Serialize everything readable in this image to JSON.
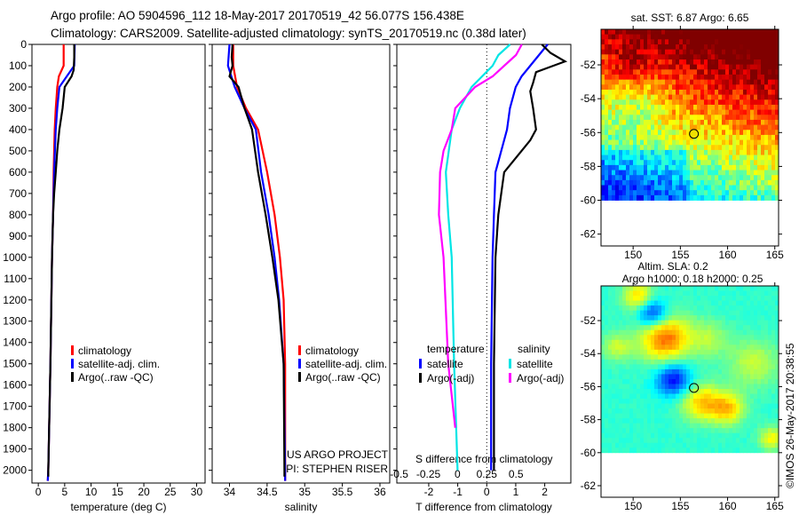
{
  "header": {
    "line1": "Argo profile: AO 5904596_112 18-May-2017 20170519_42 56.077S 156.438E",
    "line2": "Climatology: CARS2009. Satellite-adjusted climatology: synTS_20170519.nc (0.38d later)"
  },
  "colors": {
    "climatology": "#ff0000",
    "satellite": "#0000ff",
    "argo": "#000000",
    "sal_sat": "#00e5e5",
    "sal_argo": "#ff00ff"
  },
  "chart_data": [
    {
      "type": "line",
      "name": "temperature",
      "xlabel": "temperature (deg C)",
      "ylabel": "",
      "xlim": [
        -1.2,
        31.6
      ],
      "ylim": [
        2060,
        0
      ],
      "xticks": [
        0,
        5,
        10,
        15,
        20,
        25,
        30
      ],
      "yticks": [
        0,
        100,
        200,
        300,
        400,
        500,
        600,
        700,
        800,
        900,
        1000,
        1100,
        1200,
        1300,
        1400,
        1500,
        1600,
        1700,
        1800,
        1900,
        2000
      ],
      "legend": [
        "climatology",
        "satellite-adj. clim.",
        "Argo(..raw -QC)"
      ],
      "series": [
        {
          "name": "climatology",
          "depth": [
            0,
            100,
            150,
            200,
            300,
            400,
            600,
            800,
            1000,
            1500,
            2000,
            2050
          ],
          "values": [
            4.8,
            4.8,
            3.9,
            3.6,
            3.3,
            3.1,
            2.9,
            2.8,
            2.6,
            2.3,
            1.9,
            1.8
          ]
        },
        {
          "name": "satellite-adj. clim.",
          "depth": [
            0,
            100,
            150,
            200,
            300,
            400,
            600,
            800,
            1000,
            1500,
            2000,
            2050
          ],
          "values": [
            6.9,
            6.8,
            5.4,
            4.0,
            3.6,
            3.3,
            3.0,
            2.8,
            2.6,
            2.3,
            1.9,
            1.8
          ]
        },
        {
          "name": "Argo(..raw -QC)",
          "depth": [
            0,
            60,
            120,
            150,
            200,
            250,
            300,
            400,
            500,
            600,
            700,
            800,
            1000,
            1500,
            2000,
            2030
          ],
          "values": [
            6.8,
            6.8,
            6.7,
            6.3,
            5.0,
            4.8,
            4.6,
            4.0,
            3.6,
            3.3,
            3.0,
            2.8,
            2.6,
            2.3,
            1.9,
            1.9
          ]
        }
      ]
    },
    {
      "type": "line",
      "name": "salinity",
      "xlabel": "salinity",
      "xlim": [
        33.77,
        36.13
      ],
      "ylim": [
        2060,
        0
      ],
      "xticks": [
        34,
        34.5,
        35,
        35.5,
        36
      ],
      "legend": [
        "climatology",
        "satellite-adj. clim.",
        "Argo(..raw -QC)"
      ],
      "annotations": [
        "US ARGO PROJECT",
        "PI: STEPHEN RISER"
      ],
      "series": [
        {
          "name": "climatology",
          "depth": [
            0,
            100,
            200,
            300,
            400,
            600,
            800,
            1000,
            1200,
            1500,
            2000,
            2050
          ],
          "values": [
            34.05,
            34.05,
            34.1,
            34.22,
            34.38,
            34.5,
            34.6,
            34.67,
            34.72,
            34.74,
            34.74,
            34.74
          ]
        },
        {
          "name": "satellite-adj. clim.",
          "depth": [
            0,
            100,
            200,
            300,
            400,
            600,
            800,
            1000,
            1200,
            1500,
            2000,
            2050
          ],
          "values": [
            34.0,
            33.98,
            34.07,
            34.2,
            34.35,
            34.42,
            34.52,
            34.6,
            34.66,
            34.72,
            34.74,
            34.74
          ]
        },
        {
          "name": "Argo(..raw -QC)",
          "depth": [
            0,
            60,
            100,
            150,
            200,
            300,
            350,
            400,
            500,
            600,
            800,
            1000,
            1200,
            1500,
            2000,
            2030
          ],
          "values": [
            34.04,
            34.03,
            34.04,
            34.0,
            34.12,
            34.2,
            34.25,
            34.3,
            34.34,
            34.38,
            34.48,
            34.57,
            34.65,
            34.72,
            34.73,
            34.73
          ]
        }
      ]
    },
    {
      "type": "line",
      "name": "difference",
      "xlabel": "T difference from climatology",
      "x2label": "S difference from climatology",
      "xlim": [
        -3.1,
        2.9
      ],
      "x2lim": [
        -0.52,
        0.97
      ],
      "ylim": [
        2060,
        0
      ],
      "xticks": [
        -2,
        -1,
        0,
        1,
        2
      ],
      "x2ticks": [
        -0.5,
        -0.25,
        0,
        0.25,
        0.5
      ],
      "legend_headers": [
        "temperature",
        "salinity"
      ],
      "legend": [
        "satellite",
        "Argo(-adj)",
        "satellite",
        "Argo(-adj)"
      ],
      "series": [
        {
          "name": "T satellite",
          "axis": "T",
          "depth": [
            0,
            50,
            100,
            150,
            200,
            300,
            400,
            500,
            600,
            800,
            1000,
            1500,
            2000
          ],
          "values": [
            2.1,
            1.8,
            1.5,
            1.2,
            1.0,
            0.8,
            0.7,
            0.5,
            0.3,
            0.25,
            0.2,
            0.15,
            0.15
          ]
        },
        {
          "name": "T Argo(-adj)",
          "axis": "T",
          "depth": [
            0,
            40,
            80,
            100,
            130,
            180,
            220,
            300,
            400,
            450,
            500,
            600,
            700,
            800,
            1000,
            1500,
            2000
          ],
          "values": [
            1.9,
            2.2,
            2.7,
            2.3,
            1.7,
            1.6,
            1.5,
            1.6,
            1.7,
            1.5,
            1.2,
            0.6,
            0.5,
            0.4,
            0.3,
            0.25,
            0.25
          ]
        },
        {
          "name": "S satellite",
          "axis": "S",
          "depth": [
            0,
            50,
            100,
            200,
            300,
            400,
            600,
            800,
            1000,
            1500,
            2000
          ],
          "values": [
            0.45,
            0.35,
            0.3,
            0.12,
            0.02,
            -0.05,
            -0.1,
            -0.08,
            -0.05,
            -0.03,
            0.0
          ]
        },
        {
          "name": "S Argo(-adj)",
          "axis": "S",
          "depth": [
            0,
            50,
            100,
            150,
            200,
            300,
            400,
            500,
            600,
            800,
            1000,
            1500,
            1800
          ],
          "values": [
            0.55,
            0.5,
            0.4,
            0.3,
            0.15,
            -0.02,
            -0.05,
            -0.12,
            -0.15,
            -0.16,
            -0.12,
            -0.08,
            -0.02
          ]
        }
      ]
    }
  ],
  "maps": {
    "sst": {
      "title": "sat. SST: 6.87 Argo: 6.65"
    },
    "sla": {
      "title1": "Altim. SLA: 0.2",
      "title2": "Argo h1000: 0.18 h2000: 0.25"
    },
    "lon_ticks": [
      150,
      155,
      160,
      165
    ],
    "lat_ticks": [
      -52,
      -54,
      -56,
      -58,
      -60,
      -62
    ],
    "lon_range": [
      146.6,
      165.4
    ],
    "lat_range": [
      -49.9,
      -62.7
    ],
    "data_lat_limit": -60,
    "argo_position": {
      "lat": -56.077,
      "lon": 156.438
    },
    "copyright": "©IMOS 26-May-2017 20:38:55"
  }
}
